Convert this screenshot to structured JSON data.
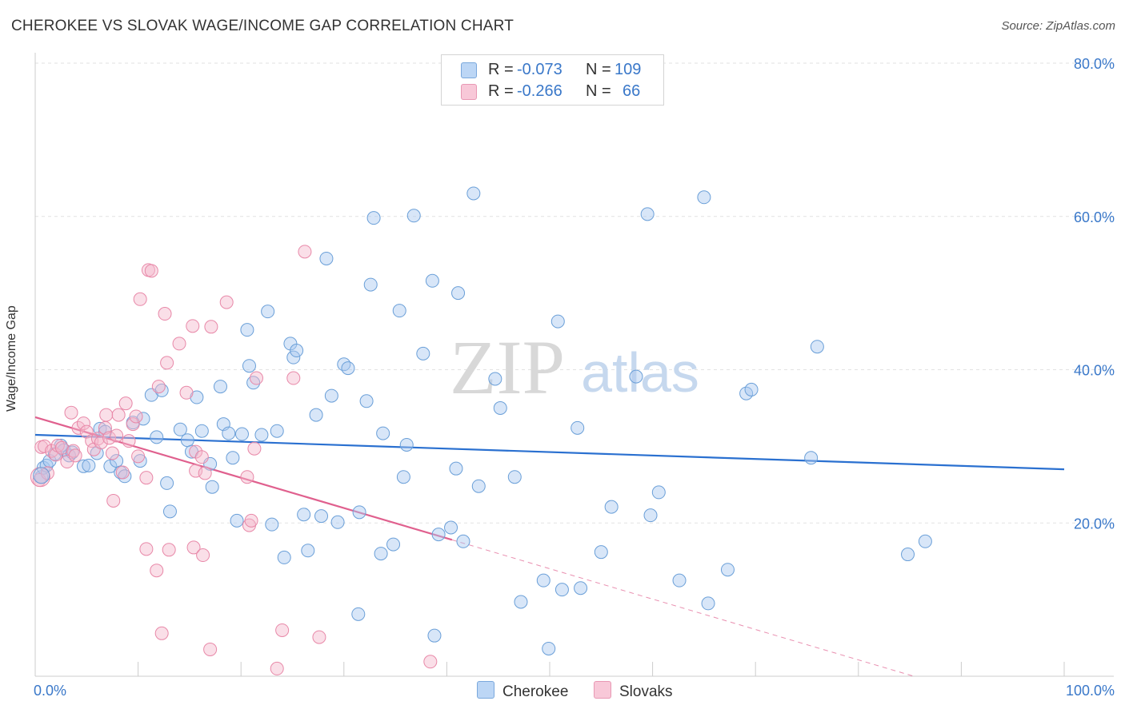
{
  "title": "CHEROKEE VS SLOVAK WAGE/INCOME GAP CORRELATION CHART",
  "source": "Source: ZipAtlas.com",
  "watermark": {
    "zip": "ZIP",
    "atlas": "atlas"
  },
  "legend": {
    "rows": [
      {
        "r_label": "R =",
        "r_value": "-0.073",
        "n_label": "N =",
        "n_value": "109"
      },
      {
        "r_label": "R =",
        "r_value": "-0.266",
        "n_label": "N =",
        "n_value": "66"
      }
    ]
  },
  "bottom_legend": {
    "cherokee": "Cherokee",
    "slovaks": "Slovaks"
  },
  "colors": {
    "cherokee_fill": "#a8c8f0",
    "cherokee_stroke": "#6a9fd8",
    "cherokee_line": "#2a70d0",
    "slovaks_fill": "#f5b8cc",
    "slovaks_stroke": "#e888a8",
    "slovaks_line": "#e0608e",
    "axis_text": "#3a78c9",
    "grid": "#e2e2e2"
  },
  "chart_data": {
    "type": "scatter",
    "title": "CHEROKEE VS SLOVAK WAGE/INCOME GAP CORRELATION CHART",
    "xlabel": "",
    "ylabel": "Wage/Income Gap",
    "xlim": [
      0,
      100
    ],
    "ylim": [
      0,
      80
    ],
    "x_tick_labels": [
      {
        "value": 0,
        "label": "0.0%"
      },
      {
        "value": 100,
        "label": "100.0%"
      }
    ],
    "y_tick_labels": [
      {
        "value": 20,
        "label": "20.0%"
      },
      {
        "value": 40,
        "label": "40.0%"
      },
      {
        "value": 60,
        "label": "60.0%"
      },
      {
        "value": 80,
        "label": "80.0%"
      }
    ],
    "x_minor_ticks": [
      10,
      20,
      30,
      40,
      50,
      60,
      70,
      80,
      90,
      100
    ],
    "series": [
      {
        "name": "Cherokee",
        "r": -0.073,
        "n": 109,
        "trend": {
          "x": [
            0,
            100
          ],
          "y": [
            31.5,
            27.0
          ]
        },
        "points": [
          [
            0.6,
            26.0
          ],
          [
            0.8,
            27.2
          ],
          [
            1.1,
            27.5
          ],
          [
            1.4,
            28.1
          ],
          [
            1.9,
            29.0
          ],
          [
            2.5,
            30.1
          ],
          [
            2.8,
            29.5
          ],
          [
            3.3,
            28.8
          ],
          [
            3.6,
            29.2
          ],
          [
            4.7,
            27.4
          ],
          [
            5.2,
            27.5
          ],
          [
            6.0,
            29.1
          ],
          [
            6.3,
            32.3
          ],
          [
            6.8,
            31.9
          ],
          [
            7.3,
            27.4
          ],
          [
            7.9,
            28.1
          ],
          [
            8.3,
            26.6
          ],
          [
            8.7,
            26.1
          ],
          [
            9.5,
            33.1
          ],
          [
            10.2,
            28.1
          ],
          [
            10.5,
            33.6
          ],
          [
            11.3,
            36.7
          ],
          [
            11.8,
            31.2
          ],
          [
            12.3,
            37.3
          ],
          [
            12.8,
            25.2
          ],
          [
            13.1,
            21.5
          ],
          [
            14.1,
            32.2
          ],
          [
            14.8,
            30.8
          ],
          [
            15.2,
            29.3
          ],
          [
            15.7,
            36.4
          ],
          [
            16.2,
            32.0
          ],
          [
            17.0,
            27.7
          ],
          [
            17.2,
            24.7
          ],
          [
            18.0,
            37.8
          ],
          [
            18.3,
            32.9
          ],
          [
            18.8,
            31.7
          ],
          [
            19.2,
            28.5
          ],
          [
            19.6,
            20.3
          ],
          [
            20.1,
            31.6
          ],
          [
            20.6,
            45.2
          ],
          [
            20.8,
            40.5
          ],
          [
            21.2,
            38.3
          ],
          [
            22.0,
            31.5
          ],
          [
            22.6,
            47.6
          ],
          [
            23.0,
            19.8
          ],
          [
            23.5,
            32.0
          ],
          [
            24.2,
            15.5
          ],
          [
            24.8,
            43.4
          ],
          [
            25.1,
            41.6
          ],
          [
            25.4,
            42.5
          ],
          [
            26.1,
            21.1
          ],
          [
            26.5,
            16.4
          ],
          [
            27.3,
            34.1
          ],
          [
            27.8,
            20.9
          ],
          [
            28.3,
            54.5
          ],
          [
            28.8,
            36.6
          ],
          [
            29.4,
            20.1
          ],
          [
            30.0,
            40.7
          ],
          [
            30.4,
            40.2
          ],
          [
            31.4,
            8.1
          ],
          [
            31.5,
            21.4
          ],
          [
            32.2,
            35.9
          ],
          [
            32.6,
            51.1
          ],
          [
            32.9,
            59.8
          ],
          [
            33.6,
            16.0
          ],
          [
            33.8,
            31.7
          ],
          [
            34.8,
            17.2
          ],
          [
            35.4,
            47.7
          ],
          [
            35.8,
            26.0
          ],
          [
            36.1,
            30.2
          ],
          [
            36.8,
            60.1
          ],
          [
            37.7,
            42.1
          ],
          [
            38.6,
            51.6
          ],
          [
            38.8,
            5.3
          ],
          [
            39.2,
            18.5
          ],
          [
            40.4,
            19.4
          ],
          [
            40.9,
            27.1
          ],
          [
            41.1,
            50.0
          ],
          [
            41.6,
            17.6
          ],
          [
            42.6,
            63.0
          ],
          [
            43.1,
            24.8
          ],
          [
            44.7,
            38.8
          ],
          [
            45.2,
            35.0
          ],
          [
            46.6,
            26.0
          ],
          [
            47.2,
            9.7
          ],
          [
            49.4,
            12.5
          ],
          [
            49.9,
            3.6
          ],
          [
            50.8,
            46.3
          ],
          [
            51.2,
            11.3
          ],
          [
            52.7,
            32.4
          ],
          [
            53.0,
            11.5
          ],
          [
            55.0,
            16.2
          ],
          [
            56.0,
            22.1
          ],
          [
            58.4,
            39.1
          ],
          [
            59.5,
            60.3
          ],
          [
            59.8,
            21.0
          ],
          [
            60.6,
            24.0
          ],
          [
            62.6,
            12.5
          ],
          [
            65.0,
            62.5
          ],
          [
            65.4,
            9.5
          ],
          [
            67.3,
            13.9
          ],
          [
            69.1,
            36.9
          ],
          [
            69.6,
            37.4
          ],
          [
            75.4,
            28.5
          ],
          [
            76.0,
            43.0
          ],
          [
            84.8,
            15.9
          ],
          [
            86.5,
            17.6
          ]
        ]
      },
      {
        "name": "Slovaks",
        "r": -0.266,
        "n": 66,
        "trend": {
          "x": [
            0,
            40.5
          ],
          "y": [
            33.8,
            17.8
          ]
        },
        "trend_dashed": {
          "x": [
            40.5,
            100
          ],
          "y": [
            17.8,
            -5.8
          ]
        },
        "points": [
          [
            0.4,
            25.6
          ],
          [
            0.6,
            29.9
          ],
          [
            0.9,
            30.0
          ],
          [
            1.2,
            26.5
          ],
          [
            1.6,
            29.4
          ],
          [
            2.0,
            28.9
          ],
          [
            2.2,
            30.1
          ],
          [
            2.6,
            29.8
          ],
          [
            3.1,
            28.0
          ],
          [
            3.5,
            34.4
          ],
          [
            3.7,
            29.4
          ],
          [
            3.9,
            28.8
          ],
          [
            4.2,
            32.4
          ],
          [
            4.7,
            33.0
          ],
          [
            5.0,
            31.9
          ],
          [
            5.5,
            30.7
          ],
          [
            5.7,
            29.6
          ],
          [
            6.1,
            31.0
          ],
          [
            6.4,
            30.5
          ],
          [
            6.8,
            32.4
          ],
          [
            6.9,
            34.1
          ],
          [
            7.2,
            31.1
          ],
          [
            7.5,
            29.1
          ],
          [
            7.6,
            22.9
          ],
          [
            7.9,
            31.4
          ],
          [
            8.1,
            34.1
          ],
          [
            8.5,
            26.6
          ],
          [
            8.8,
            35.6
          ],
          [
            9.1,
            30.7
          ],
          [
            9.5,
            32.9
          ],
          [
            9.8,
            33.9
          ],
          [
            10.0,
            28.7
          ],
          [
            10.2,
            49.2
          ],
          [
            10.8,
            16.6
          ],
          [
            10.8,
            25.9
          ],
          [
            11.0,
            53.0
          ],
          [
            11.3,
            52.9
          ],
          [
            11.8,
            13.8
          ],
          [
            12.0,
            37.8
          ],
          [
            12.3,
            5.6
          ],
          [
            12.6,
            47.3
          ],
          [
            12.8,
            40.9
          ],
          [
            13.0,
            16.5
          ],
          [
            14.0,
            43.4
          ],
          [
            14.7,
            37.0
          ],
          [
            15.3,
            45.7
          ],
          [
            15.4,
            16.8
          ],
          [
            15.6,
            29.3
          ],
          [
            15.6,
            26.8
          ],
          [
            16.2,
            28.6
          ],
          [
            16.3,
            15.8
          ],
          [
            16.5,
            26.5
          ],
          [
            17.0,
            3.5
          ],
          [
            17.1,
            45.6
          ],
          [
            18.6,
            48.8
          ],
          [
            20.6,
            26.0
          ],
          [
            20.8,
            19.7
          ],
          [
            21.0,
            20.3
          ],
          [
            21.3,
            29.7
          ],
          [
            21.5,
            38.9
          ],
          [
            23.5,
            1.0
          ],
          [
            24.0,
            6.0
          ],
          [
            25.1,
            38.9
          ],
          [
            26.2,
            55.4
          ],
          [
            27.6,
            5.1
          ],
          [
            38.4,
            1.9
          ]
        ]
      }
    ]
  }
}
